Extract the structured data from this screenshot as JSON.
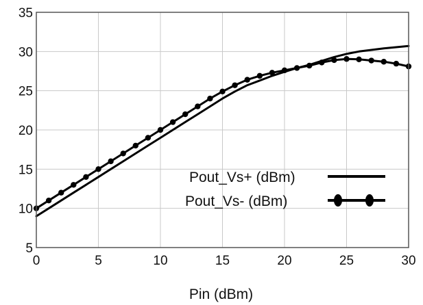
{
  "chart_data": {
    "type": "line",
    "xlabel": "Pin (dBm)",
    "ylabel": "",
    "xlim": [
      0,
      30
    ],
    "ylim": [
      5,
      35
    ],
    "x_ticks": [
      "0",
      "5",
      "10",
      "15",
      "20",
      "25",
      "30"
    ],
    "y_ticks": [
      "5",
      "10",
      "15",
      "20",
      "25",
      "30",
      "35"
    ],
    "grid": true,
    "legend_position": "center-right",
    "colors": {
      "series": "#000000",
      "grid": "#c8c8c8",
      "frame": "#555555"
    },
    "series": [
      {
        "name": "Pout_Vs+ (dBm)",
        "marker": "none",
        "x": [
          0,
          1,
          2,
          3,
          4,
          5,
          6,
          7,
          8,
          9,
          10,
          11,
          12,
          13,
          14,
          15,
          16,
          17,
          18,
          19,
          20,
          21,
          22,
          23,
          24,
          25,
          26,
          27,
          28,
          29,
          30
        ],
        "y": [
          9.0,
          10.0,
          11.0,
          12.0,
          13.0,
          14.0,
          15.0,
          16.0,
          17.0,
          18.0,
          19.0,
          20.0,
          21.0,
          22.0,
          23.0,
          24.0,
          24.9,
          25.7,
          26.3,
          26.9,
          27.4,
          27.9,
          28.3,
          28.8,
          29.3,
          29.7,
          30.0,
          30.2,
          30.4,
          30.55,
          30.7
        ]
      },
      {
        "name": "Pout_Vs- (dBm)",
        "marker": "circle",
        "x": [
          0,
          1,
          2,
          3,
          4,
          5,
          6,
          7,
          8,
          9,
          10,
          11,
          12,
          13,
          14,
          15,
          16,
          17,
          18,
          19,
          20,
          21,
          22,
          23,
          24,
          25,
          26,
          27,
          28,
          29,
          30
        ],
        "y": [
          10.0,
          11.0,
          12.0,
          13.0,
          14.0,
          15.0,
          16.0,
          17.0,
          18.0,
          19.0,
          20.0,
          21.0,
          22.0,
          23.0,
          24.0,
          24.9,
          25.7,
          26.4,
          26.9,
          27.3,
          27.6,
          27.9,
          28.2,
          28.6,
          28.9,
          29.05,
          29.0,
          28.85,
          28.7,
          28.45,
          28.1
        ]
      }
    ]
  }
}
